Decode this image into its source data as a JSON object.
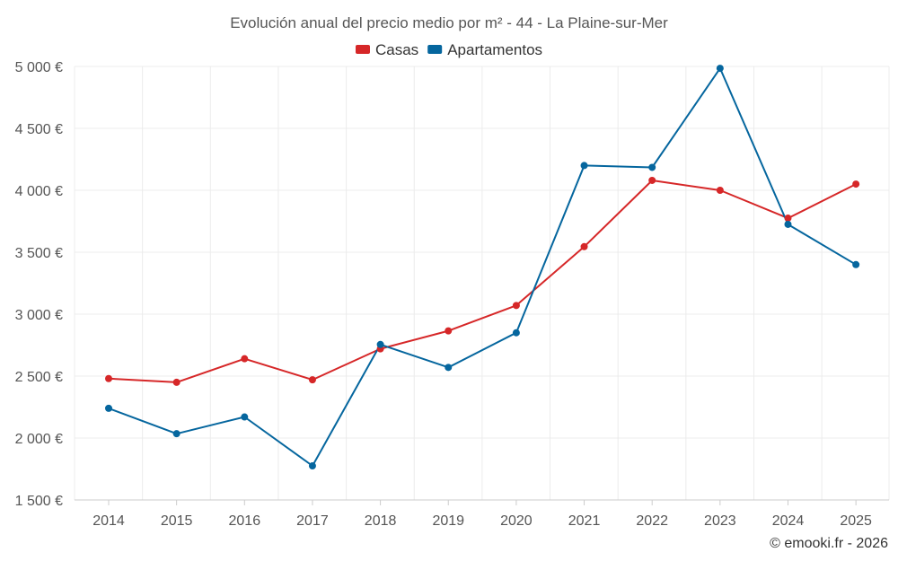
{
  "chart_data": {
    "type": "line",
    "title": "Evolución anual del precio medio por m² - 44 - La Plaine-sur-Mer",
    "categories": [
      "2014",
      "2015",
      "2016",
      "2017",
      "2018",
      "2019",
      "2020",
      "2021",
      "2022",
      "2023",
      "2024",
      "2025"
    ],
    "series": [
      {
        "name": "Casas",
        "color": "#d62728",
        "values": [
          2480,
          2450,
          2640,
          2470,
          2720,
          2865,
          3070,
          3545,
          4080,
          4000,
          3775,
          4050
        ]
      },
      {
        "name": "Apartamentos",
        "color": "#05669e",
        "values": [
          2240,
          2035,
          2170,
          1775,
          2755,
          2570,
          2850,
          4200,
          4185,
          4985,
          3725,
          3400
        ]
      }
    ],
    "ylim": [
      1500,
      5000
    ],
    "yticks": [
      1500,
      2000,
      2500,
      3000,
      3500,
      4000,
      4500,
      5000
    ],
    "ytick_labels": [
      "1 500 €",
      "2 000 €",
      "2 500 €",
      "3 000 €",
      "3 500 €",
      "4 000 €",
      "4 500 €",
      "5 000 €"
    ],
    "xlabel": "",
    "ylabel": "",
    "grid": true,
    "legend_position": "top-center"
  },
  "credit": "© emooki.fr - 2026"
}
